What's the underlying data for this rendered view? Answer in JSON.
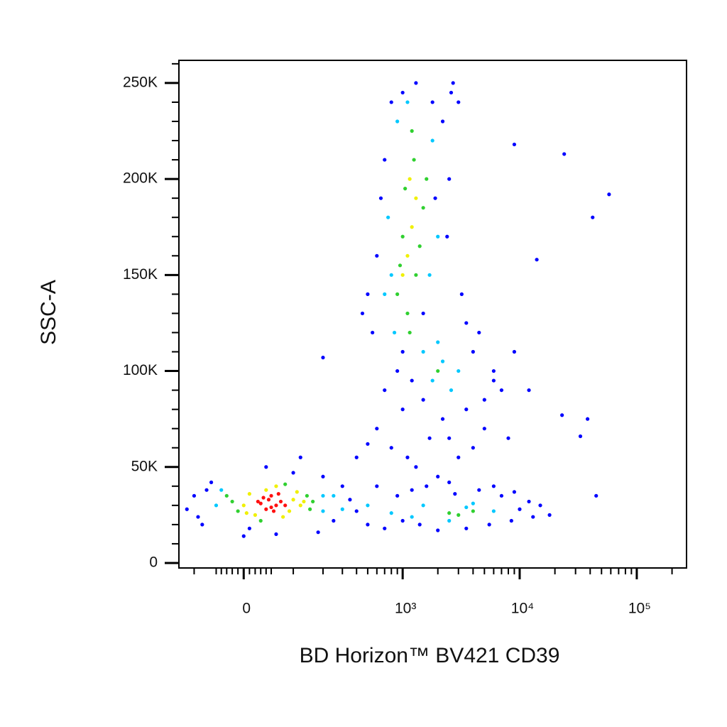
{
  "chart_data": {
    "type": "scatter",
    "x_label": "BD Horizon™ BV421 CD39",
    "y_label": "SSC-A",
    "xscale": "biexponential",
    "xlim": [
      -145,
      266000
    ],
    "xticks": [
      0,
      {
        "value": 1000,
        "label": "10³"
      },
      {
        "value": 10000,
        "label": "10⁴"
      },
      {
        "value": 100000,
        "label": "10⁵"
      }
    ],
    "xminorticks": [
      -100,
      -50,
      -40,
      -30,
      -20,
      -10,
      10,
      20,
      30,
      40,
      50,
      100,
      200,
      300,
      400,
      500,
      600,
      700,
      800,
      900,
      2000,
      3000,
      4000,
      5000,
      6000,
      7000,
      8000,
      9000,
      20000,
      30000,
      40000,
      50000,
      60000,
      70000,
      80000,
      90000,
      200000
    ],
    "ylim": [
      -2600,
      261800
    ],
    "yticks": [
      0,
      {
        "value": 50000,
        "label": "50K"
      },
      {
        "value": 100000,
        "label": "100K"
      },
      {
        "value": 150000,
        "label": "150K"
      },
      {
        "value": 200000,
        "label": "200K"
      },
      {
        "value": 250000,
        "label": "250K"
      }
    ],
    "yminorticks": [
      10000,
      20000,
      30000,
      40000,
      60000,
      70000,
      80000,
      90000,
      110000,
      120000,
      130000,
      140000,
      160000,
      170000,
      180000,
      190000,
      210000,
      220000,
      230000,
      240000,
      260000
    ],
    "series": [
      {
        "color": "#0000ff",
        "x": [
          -120,
          -80,
          -100,
          -60,
          -90,
          10,
          40,
          100,
          200,
          300,
          250,
          180,
          -70,
          0,
          120,
          350,
          400,
          60,
          500,
          700,
          900,
          1200,
          1600,
          2000,
          2800,
          3500,
          4500,
          5500,
          7000,
          8500,
          10000,
          12000,
          15000,
          18000,
          600,
          1000,
          1400,
          2500,
          6000,
          9000,
          13000,
          400,
          600,
          800,
          1000,
          1300,
          1700,
          2200,
          3000,
          4000,
          5000,
          700,
          1500,
          2500,
          900,
          3500,
          6000,
          8000,
          1100,
          2000,
          500,
          500,
          550,
          650,
          1000,
          1300,
          1800,
          2200,
          2600,
          3000,
          2500,
          600,
          700,
          1900,
          1500,
          800,
          2400,
          3200,
          2700,
          450,
          1200,
          4000,
          5000,
          6000,
          7000,
          9000,
          12000,
          3500,
          4500,
          1000,
          9000,
          24000,
          58000,
          42000,
          14000,
          38000,
          45000,
          23000,
          33000,
          200
        ],
        "y": [
          28000,
          20000,
          35000,
          42000,
          24000,
          18000,
          50000,
          47000,
          45000,
          40000,
          22000,
          16000,
          38000,
          14000,
          55000,
          33000,
          27000,
          15000,
          20000,
          18000,
          35000,
          38000,
          40000,
          17000,
          36000,
          18000,
          38000,
          20000,
          35000,
          22000,
          28000,
          32000,
          30000,
          25000,
          40000,
          22000,
          20000,
          42000,
          40000,
          37000,
          24000,
          55000,
          70000,
          60000,
          80000,
          50000,
          65000,
          75000,
          55000,
          60000,
          70000,
          90000,
          85000,
          65000,
          100000,
          80000,
          95000,
          65000,
          55000,
          45000,
          62000,
          140000,
          120000,
          190000,
          245000,
          250000,
          240000,
          230000,
          245000,
          240000,
          200000,
          160000,
          210000,
          190000,
          130000,
          240000,
          170000,
          140000,
          250000,
          130000,
          95000,
          110000,
          85000,
          100000,
          90000,
          110000,
          90000,
          125000,
          120000,
          110000,
          218000,
          213000,
          192000,
          180000,
          158000,
          75000,
          35000,
          77000,
          66000,
          107000
        ]
      },
      {
        "color": "#00c8ff",
        "x": [
          800,
          750,
          1700,
          1800,
          900,
          1500,
          1100,
          2000,
          700,
          850,
          1800,
          2200,
          2600,
          2000,
          3000,
          300,
          500,
          800,
          1500,
          2500,
          4000,
          6000,
          200,
          1200,
          3500,
          -50,
          200,
          250,
          -40
        ],
        "y": [
          150000,
          180000,
          150000,
          220000,
          230000,
          110000,
          240000,
          170000,
          140000,
          120000,
          95000,
          105000,
          90000,
          115000,
          100000,
          28000,
          30000,
          26000,
          30000,
          22000,
          31000,
          27000,
          35000,
          24000,
          29000,
          30000,
          27000,
          35000,
          38000
        ]
      },
      {
        "color": "#30d030",
        "x": [
          -20,
          -10,
          150,
          140,
          30,
          80,
          160,
          -30,
          900,
          1000,
          1400,
          1100,
          1250,
          1500,
          950,
          1300,
          1200,
          1050,
          1600,
          1150,
          3000,
          4000,
          2500,
          2000
        ],
        "y": [
          32000,
          27000,
          28000,
          35000,
          22000,
          41000,
          32000,
          35000,
          140000,
          170000,
          165000,
          130000,
          210000,
          185000,
          155000,
          150000,
          225000,
          195000,
          200000,
          120000,
          25000,
          27000,
          26000,
          100000
        ]
      },
      {
        "color": "#f0f000",
        "x": [
          0,
          10,
          100,
          90,
          120,
          20,
          40,
          110,
          75,
          5,
          60,
          130,
          1100,
          1200,
          1000,
          1300,
          1150
        ],
        "y": [
          30000,
          36000,
          33000,
          27000,
          30000,
          25000,
          38000,
          37000,
          24000,
          26000,
          40000,
          32000,
          160000,
          175000,
          150000,
          190000,
          200000
        ]
      },
      {
        "color": "#ff1010",
        "x": [
          30,
          45,
          60,
          50,
          70,
          40,
          55,
          80,
          35,
          65,
          50,
          25
        ],
        "y": [
          31000,
          33000,
          30000,
          35000,
          32000,
          28000,
          27000,
          30000,
          34000,
          36000,
          29000,
          32000
        ]
      }
    ]
  }
}
